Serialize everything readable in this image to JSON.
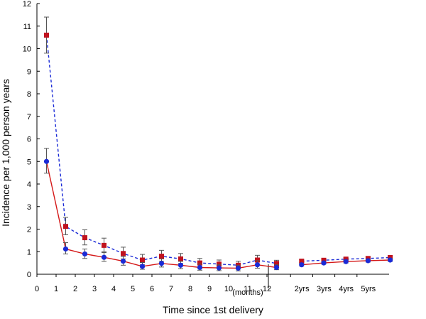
{
  "chart_data": {
    "type": "line",
    "xlabel": "Time since 1st delivery",
    "ylabel": "Incidence per 1,000 person years",
    "ylim": [
      0,
      12
    ],
    "y_ticks": [
      "0",
      "1",
      "2",
      "3",
      "4",
      "5",
      "6",
      "7",
      "8",
      "9",
      "10",
      "11",
      "12"
    ],
    "x_ticks_months": [
      "0",
      "1",
      "2",
      "3",
      "4",
      "5",
      "6",
      "7",
      "8",
      "9",
      "10",
      "11",
      "12"
    ],
    "x_ticks_years": [
      "2yrs",
      "3yrs",
      "4yrs",
      "5yrs"
    ],
    "x_months_unit_label": "(months)",
    "grid": false,
    "series": [
      {
        "marker": "square",
        "line_style": "dashed",
        "color": "#c0121e",
        "line_color": "#1a2ad6",
        "months": {
          "x": [
            0.5,
            1.5,
            2.5,
            3.5,
            4.5,
            5.5,
            6.5,
            7.5,
            8.5,
            9.5,
            10.5,
            11.5,
            12.5
          ],
          "y": [
            10.6,
            2.12,
            1.62,
            1.28,
            0.92,
            0.63,
            0.8,
            0.68,
            0.5,
            0.45,
            0.4,
            0.63,
            0.48
          ],
          "err_low": [
            9.8,
            1.75,
            1.3,
            1.0,
            0.68,
            0.42,
            0.58,
            0.48,
            0.33,
            0.3,
            0.26,
            0.45,
            0.35
          ],
          "err_high": [
            11.4,
            2.52,
            1.97,
            1.6,
            1.2,
            0.88,
            1.06,
            0.92,
            0.7,
            0.63,
            0.58,
            0.84,
            0.62
          ]
        },
        "years": {
          "x": [
            1.5,
            2.5,
            3.5,
            4.5,
            5.5
          ],
          "y": [
            0.58,
            0.62,
            0.67,
            0.7,
            0.74
          ],
          "err_low": [
            0.52,
            0.56,
            0.6,
            0.62,
            0.67
          ],
          "err_high": [
            0.65,
            0.69,
            0.75,
            0.78,
            0.82
          ]
        }
      },
      {
        "marker": "circle",
        "line_style": "solid",
        "color": "#1a2ad6",
        "line_color": "#d41818",
        "months": {
          "x": [
            0.5,
            1.5,
            2.5,
            3.5,
            4.5,
            5.5,
            6.5,
            7.5,
            8.5,
            9.5,
            10.5,
            11.5,
            12.5
          ],
          "y": [
            5.0,
            1.12,
            0.9,
            0.75,
            0.58,
            0.35,
            0.48,
            0.4,
            0.3,
            0.28,
            0.27,
            0.42,
            0.3
          ],
          "err_low": [
            4.48,
            0.9,
            0.7,
            0.57,
            0.4,
            0.22,
            0.32,
            0.25,
            0.18,
            0.16,
            0.15,
            0.27,
            0.2
          ],
          "err_high": [
            5.58,
            1.4,
            1.12,
            0.96,
            0.78,
            0.52,
            0.68,
            0.57,
            0.45,
            0.42,
            0.4,
            0.6,
            0.42
          ]
        },
        "years": {
          "x": [
            1.5,
            2.5,
            3.5,
            4.5,
            5.5
          ],
          "y": [
            0.42,
            0.5,
            0.56,
            0.6,
            0.63
          ],
          "err_low": [
            0.37,
            0.45,
            0.5,
            0.54,
            0.57
          ],
          "err_high": [
            0.48,
            0.56,
            0.62,
            0.67,
            0.7
          ]
        }
      }
    ]
  }
}
